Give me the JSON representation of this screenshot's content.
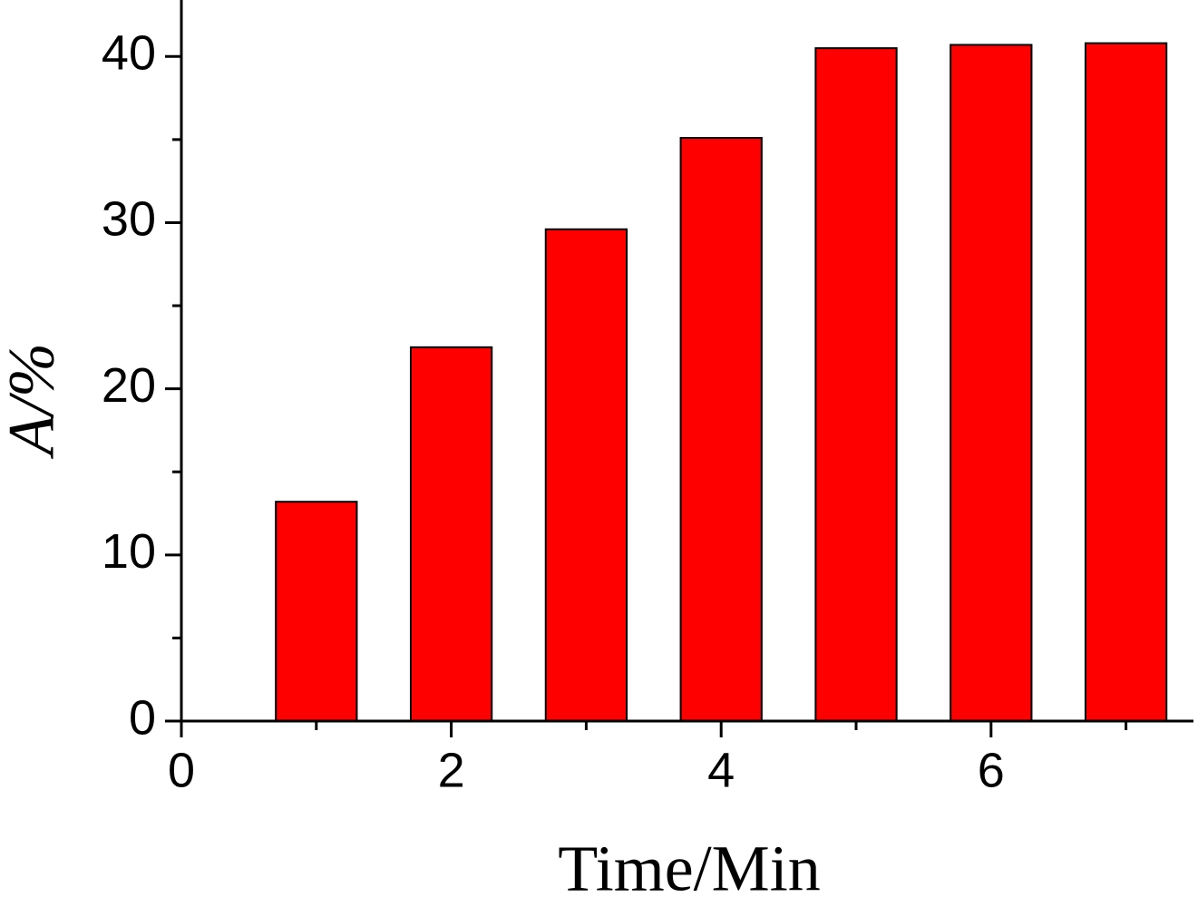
{
  "chart_data": {
    "type": "bar",
    "xlabel": "Time/Min",
    "ylabel": "A/%",
    "x": [
      1,
      2,
      3,
      4,
      5,
      6,
      7
    ],
    "values": [
      13.2,
      22.5,
      29.6,
      35.1,
      40.5,
      40.7,
      40.8
    ],
    "color": "#ff0000",
    "bar_width": 0.6,
    "xlim": [
      0,
      7.5
    ],
    "xticks": [
      0,
      2,
      4,
      6
    ],
    "xminorticks": [
      1,
      3,
      5,
      7
    ],
    "ylim": [
      0,
      43.4
    ],
    "yticks": [
      0,
      10,
      20,
      30,
      40
    ],
    "yminorticks": [
      5,
      15,
      25,
      35
    ],
    "grid": false
  }
}
